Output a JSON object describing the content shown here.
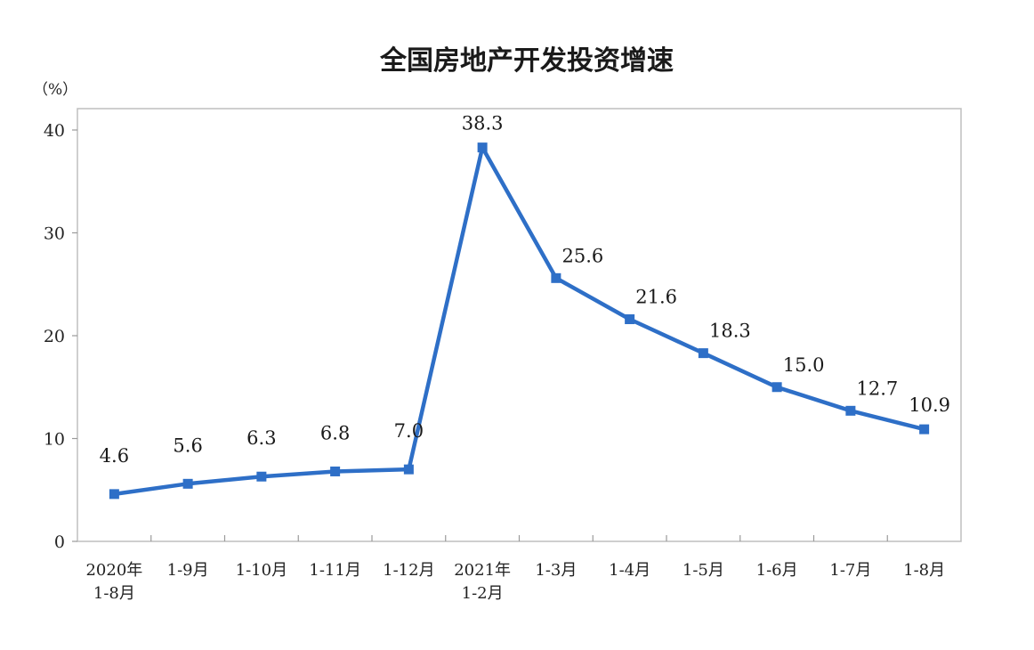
{
  "chart_data": {
    "type": "line",
    "title": "全国房地产开发投资增速",
    "unit_label": "（%）",
    "ylim": [
      0,
      40
    ],
    "yticks": [
      "0",
      "10",
      "20",
      "30",
      "40"
    ],
    "ytick_values": [
      0,
      10,
      20,
      30,
      40
    ],
    "grid": false,
    "legend": "none",
    "line_color": "#2e6fc7",
    "categories": [
      [
        "2020年",
        "1-8月"
      ],
      [
        "1-9月"
      ],
      [
        "1-10月"
      ],
      [
        "1-11月"
      ],
      [
        "1-12月"
      ],
      [
        "2021年",
        "1-2月"
      ],
      [
        "1-3月"
      ],
      [
        "1-4月"
      ],
      [
        "1-5月"
      ],
      [
        "1-6月"
      ],
      [
        "1-7月"
      ],
      [
        "1-8月"
      ]
    ],
    "series": [
      {
        "values": [
          4.6,
          5.6,
          6.3,
          6.8,
          7.0,
          38.3,
          25.6,
          21.6,
          18.3,
          15.0,
          12.7,
          10.9
        ],
        "labels": [
          "4.6",
          "5.6",
          "6.3",
          "6.8",
          "7.0",
          "38.3",
          "25.6",
          "21.6",
          "18.3",
          "15.0",
          "12.7",
          "10.9"
        ]
      }
    ]
  }
}
